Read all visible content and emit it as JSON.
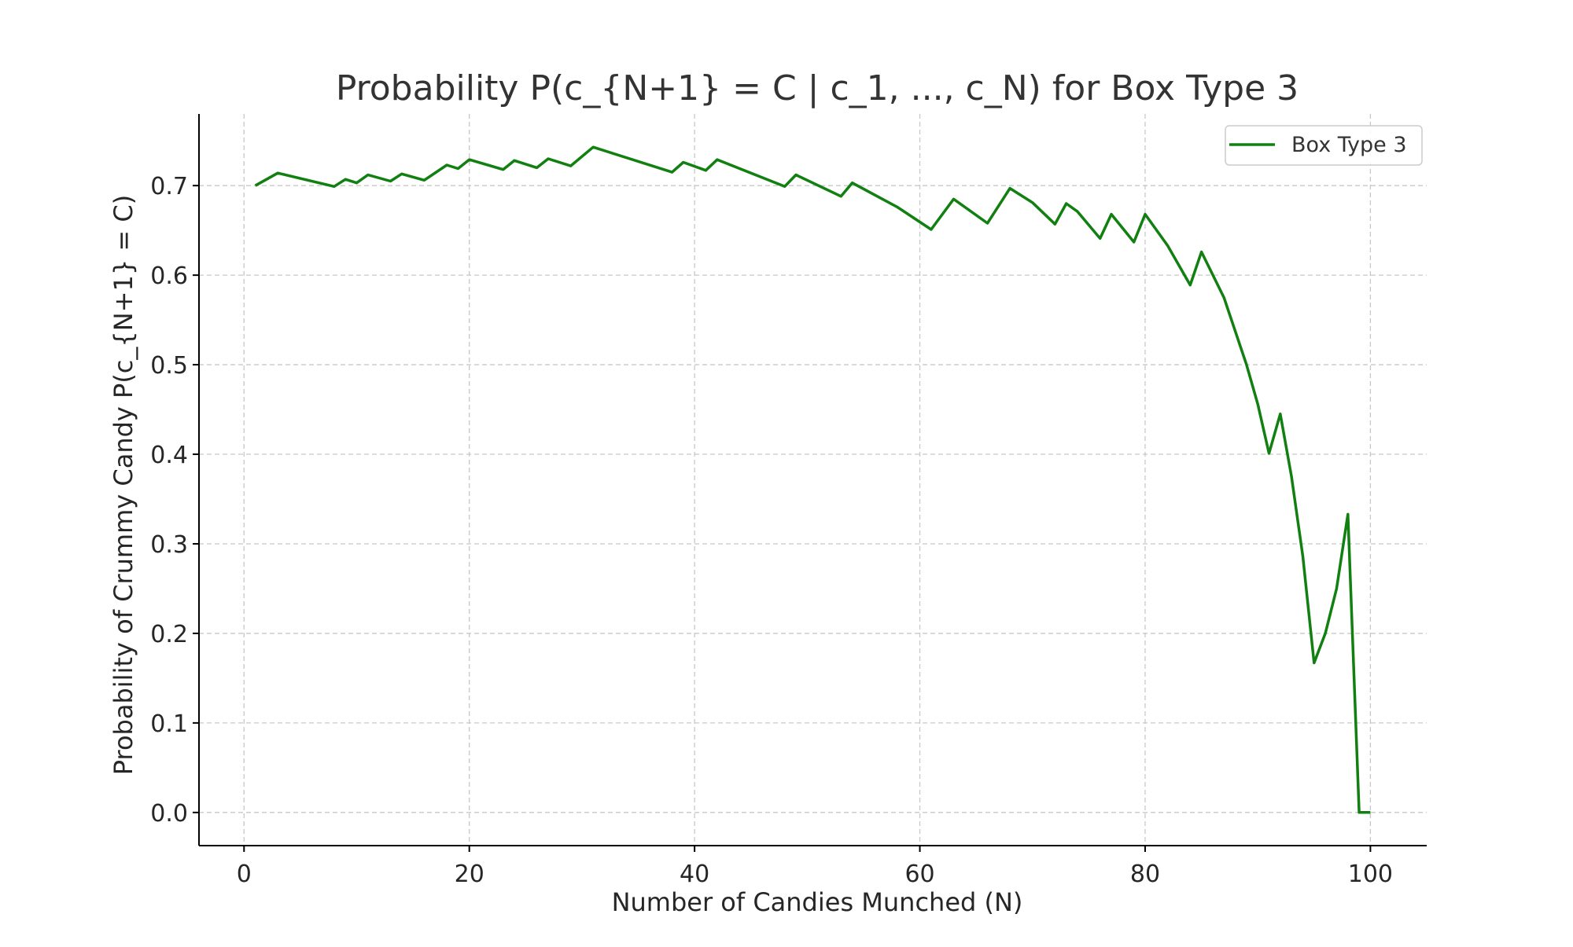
{
  "chart_data": {
    "type": "line",
    "title": "Probability P(c_{N+1} = C | c_1, ..., c_N) for Box Type 3",
    "xlabel": "Number of Candies Munched (N)",
    "ylabel": "Probability of Crummy Candy P(c_{N+1} = C)",
    "xlim": [
      -4,
      105
    ],
    "ylim": [
      -0.037,
      0.78
    ],
    "x_ticks": [
      0,
      20,
      40,
      60,
      80,
      100
    ],
    "x_tick_labels": [
      "0",
      "20",
      "40",
      "60",
      "80",
      "100"
    ],
    "y_ticks": [
      0.0,
      0.1,
      0.2,
      0.3,
      0.4,
      0.5,
      0.6,
      0.7
    ],
    "y_tick_labels": [
      "0.0",
      "0.1",
      "0.2",
      "0.3",
      "0.4",
      "0.5",
      "0.6",
      "0.7"
    ],
    "grid": true,
    "legend": {
      "position": "top-right",
      "entries": [
        "Box Type 3"
      ]
    },
    "colors": {
      "series": "#118011",
      "grid": "#c8c8c8",
      "axis": "#000000"
    },
    "series": [
      {
        "name": "Box Type 3",
        "points": [
          [
            1,
            0.7
          ],
          [
            3,
            0.714
          ],
          [
            8,
            0.699
          ],
          [
            9,
            0.707
          ],
          [
            10,
            0.703
          ],
          [
            11,
            0.712
          ],
          [
            13,
            0.705
          ],
          [
            14,
            0.713
          ],
          [
            16,
            0.706
          ],
          [
            18,
            0.723
          ],
          [
            19,
            0.719
          ],
          [
            20,
            0.729
          ],
          [
            23,
            0.718
          ],
          [
            24,
            0.728
          ],
          [
            26,
            0.72
          ],
          [
            27,
            0.73
          ],
          [
            29,
            0.722
          ],
          [
            31,
            0.743
          ],
          [
            38,
            0.715
          ],
          [
            39,
            0.726
          ],
          [
            41,
            0.717
          ],
          [
            42,
            0.729
          ],
          [
            48,
            0.699
          ],
          [
            49,
            0.712
          ],
          [
            53,
            0.688
          ],
          [
            54,
            0.703
          ],
          [
            58,
            0.676
          ],
          [
            61,
            0.651
          ],
          [
            63,
            0.685
          ],
          [
            66,
            0.658
          ],
          [
            68,
            0.697
          ],
          [
            70,
            0.681
          ],
          [
            72,
            0.657
          ],
          [
            73,
            0.68
          ],
          [
            74,
            0.671
          ],
          [
            76,
            0.641
          ],
          [
            77,
            0.668
          ],
          [
            79,
            0.637
          ],
          [
            80,
            0.668
          ],
          [
            82,
            0.633
          ],
          [
            84,
            0.589
          ],
          [
            85,
            0.626
          ],
          [
            87,
            0.575
          ],
          [
            89,
            0.5
          ],
          [
            90,
            0.456
          ],
          [
            91,
            0.401
          ],
          [
            92,
            0.445
          ],
          [
            93,
            0.375
          ],
          [
            94,
            0.286
          ],
          [
            95,
            0.167
          ],
          [
            96,
            0.2
          ],
          [
            97,
            0.25
          ],
          [
            98,
            0.333
          ],
          [
            99,
            0.0
          ],
          [
            100,
            0.0
          ]
        ]
      }
    ]
  }
}
